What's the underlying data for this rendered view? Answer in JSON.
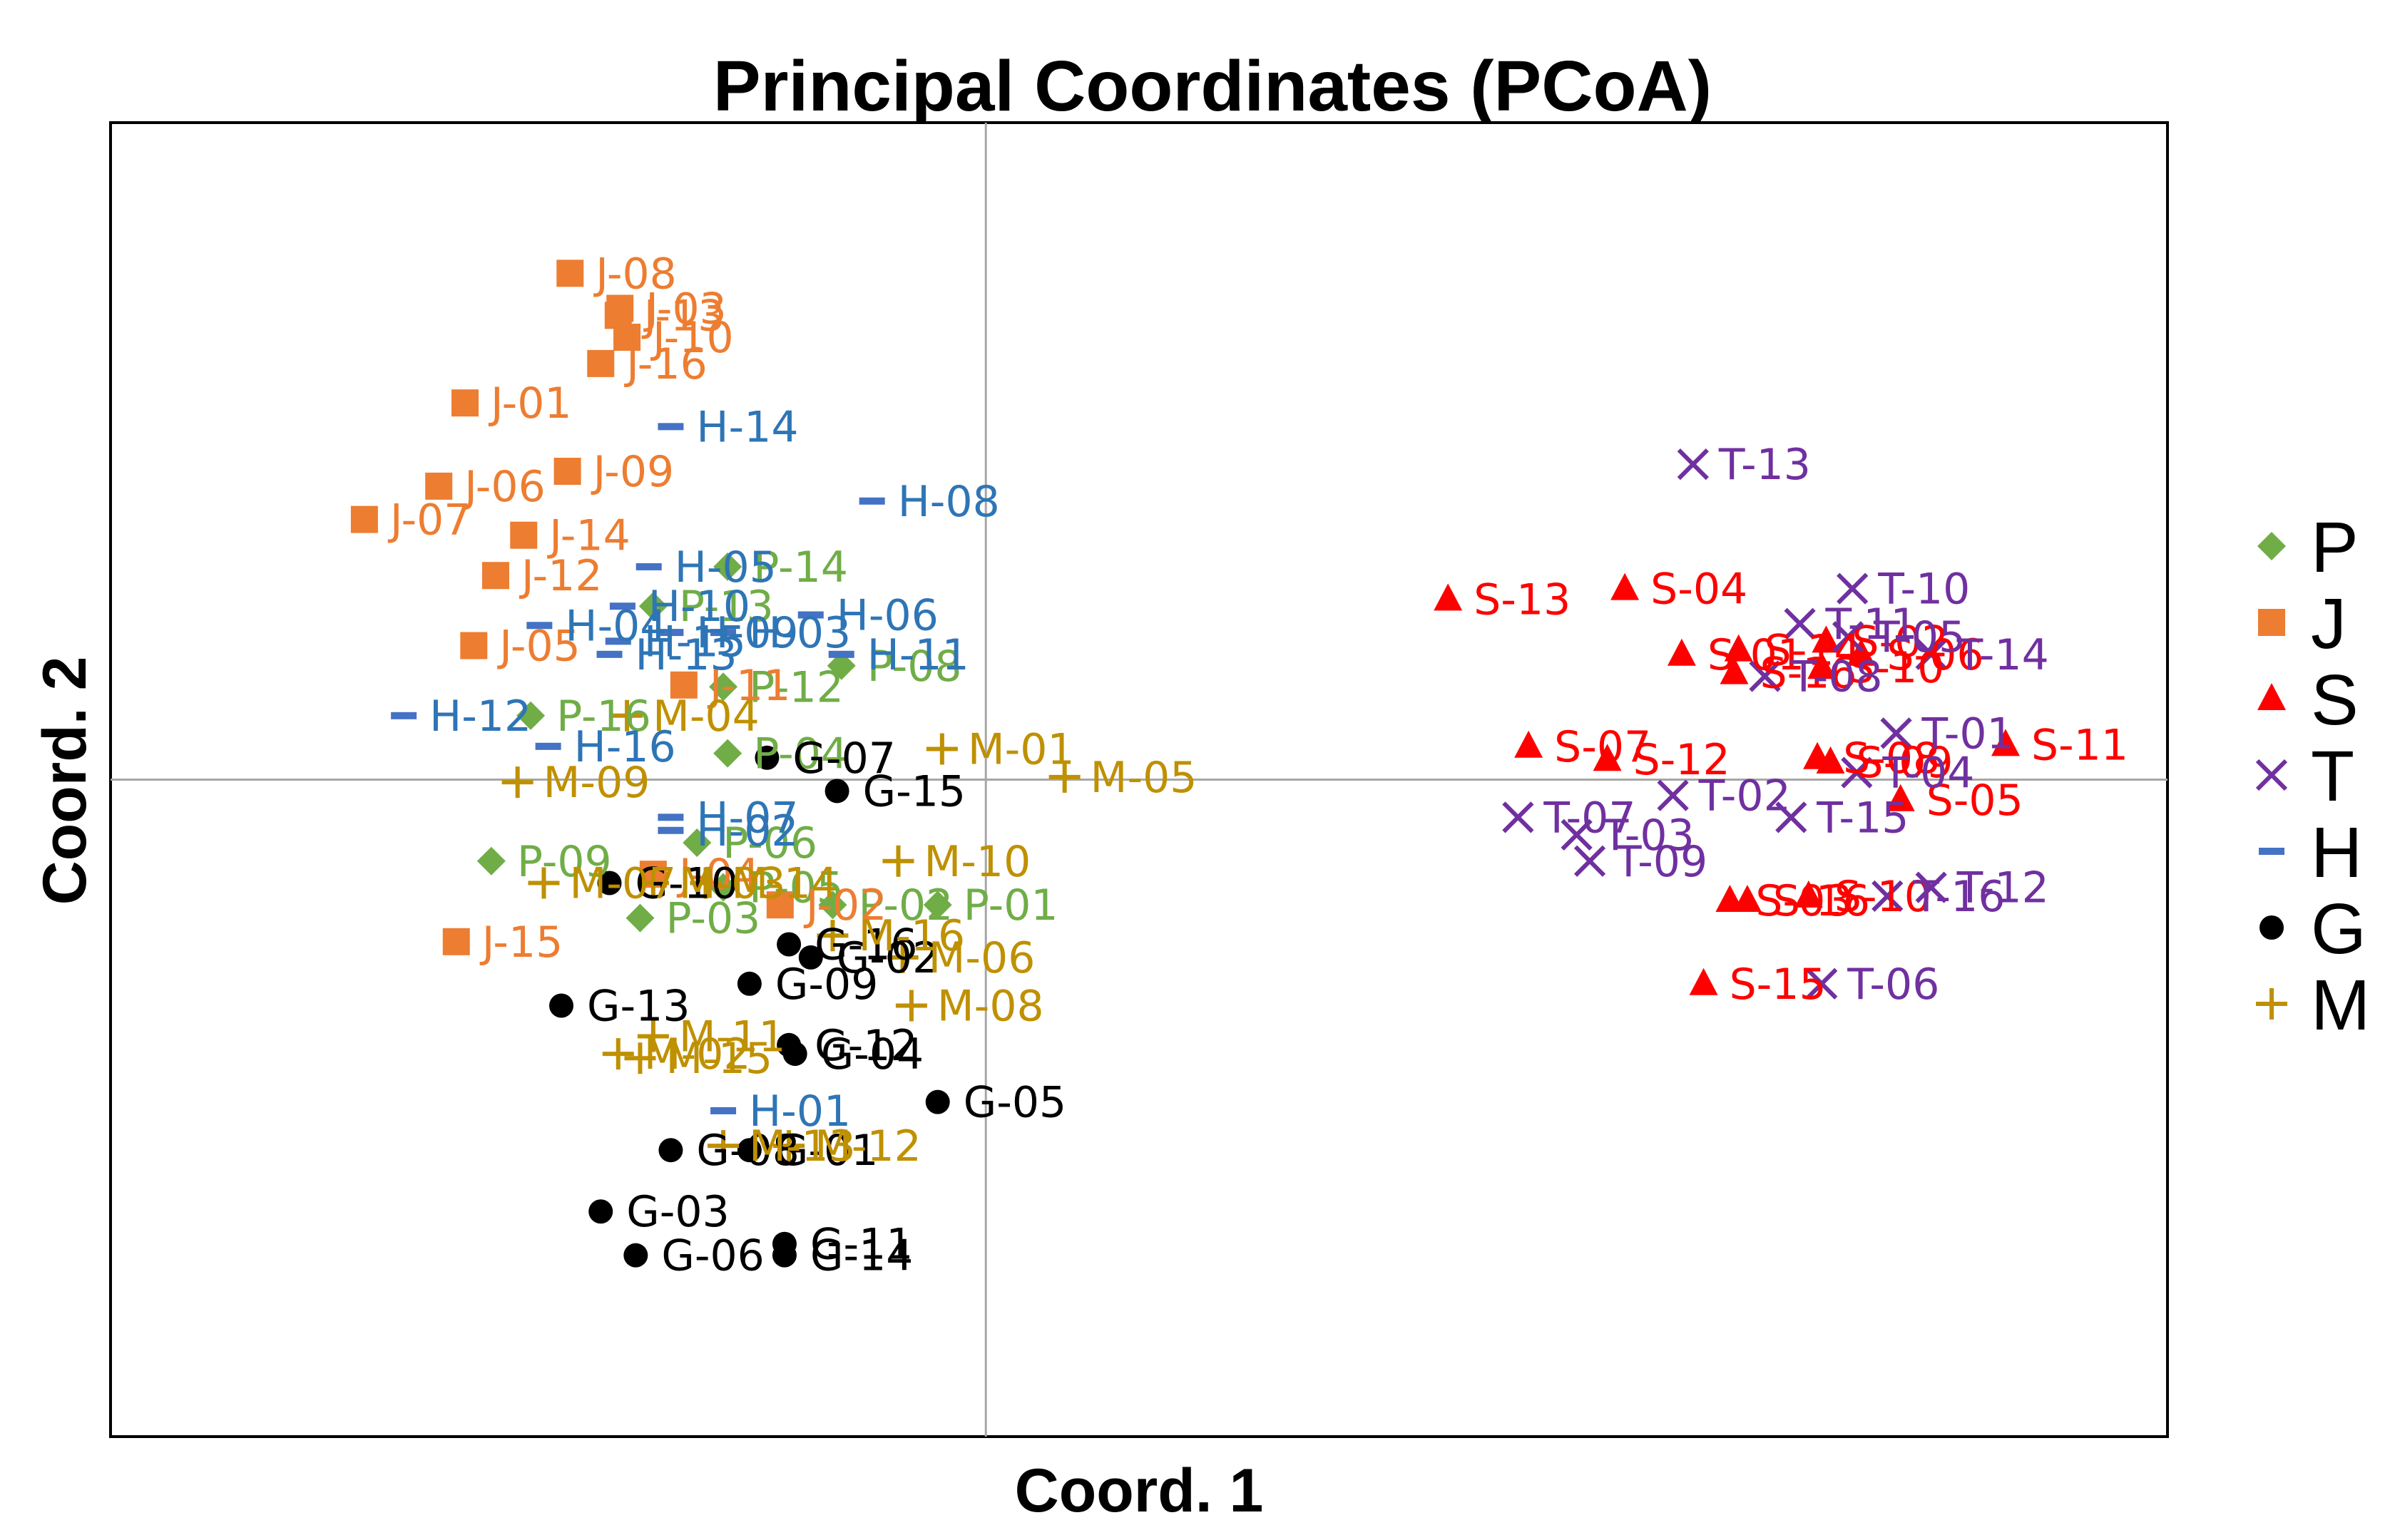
{
  "chart_data": {
    "type": "scatter",
    "title": "Principal Coordinates (PCoA)",
    "xlabel": "Coord. 1",
    "ylabel": "Coord. 2",
    "xlim": [
      -1.0,
      1.35
    ],
    "ylim": [
      -0.75,
      0.75
    ],
    "grid": false,
    "zero_lines": true,
    "legend_position": "right",
    "series": [
      {
        "name": "P",
        "marker": "diamond",
        "color": "#70AD47",
        "label_color": "#70AD47",
        "points": [
          {
            "label": "P-14",
            "x": -0.295,
            "y": 0.243
          },
          {
            "label": "P-13",
            "x": -0.38,
            "y": 0.198
          },
          {
            "label": "P-12",
            "x": -0.3,
            "y": 0.106
          },
          {
            "label": "P-08",
            "x": -0.165,
            "y": 0.13
          },
          {
            "label": "P-16",
            "x": -0.52,
            "y": 0.073
          },
          {
            "label": "P-04",
            "x": -0.295,
            "y": 0.03
          },
          {
            "label": "P-06",
            "x": -0.33,
            "y": -0.072
          },
          {
            "label": "P-09",
            "x": -0.565,
            "y": -0.093
          },
          {
            "label": "P-05",
            "x": -0.3,
            "y": -0.123
          },
          {
            "label": "P-02",
            "x": -0.175,
            "y": -0.143
          },
          {
            "label": "P-01",
            "x": -0.055,
            "y": -0.143
          },
          {
            "label": "P-03",
            "x": -0.395,
            "y": -0.158
          }
        ]
      },
      {
        "name": "J",
        "marker": "square",
        "color": "#ED7D31",
        "label_color": "#ED7D31",
        "points": [
          {
            "label": "J-08",
            "x": -0.475,
            "y": 0.578
          },
          {
            "label": "J-03",
            "x": -0.418,
            "y": 0.538
          },
          {
            "label": "J-13",
            "x": -0.42,
            "y": 0.53
          },
          {
            "label": "J-10",
            "x": -0.41,
            "y": 0.505
          },
          {
            "label": "J-16",
            "x": -0.44,
            "y": 0.475
          },
          {
            "label": "J-01",
            "x": -0.595,
            "y": 0.43
          },
          {
            "label": "J-09",
            "x": -0.478,
            "y": 0.352
          },
          {
            "label": "J-06",
            "x": -0.625,
            "y": 0.335
          },
          {
            "label": "J-07",
            "x": -0.71,
            "y": 0.297
          },
          {
            "label": "J-14",
            "x": -0.528,
            "y": 0.279
          },
          {
            "label": "J-12",
            "x": -0.56,
            "y": 0.233
          },
          {
            "label": "J-05",
            "x": -0.585,
            "y": 0.153
          },
          {
            "label": "J-11",
            "x": -0.345,
            "y": 0.108
          },
          {
            "label": "J-02",
            "x": -0.235,
            "y": -0.143
          },
          {
            "label": "J-04",
            "x": -0.38,
            "y": -0.108
          },
          {
            "label": "J-15",
            "x": -0.605,
            "y": -0.185
          }
        ]
      },
      {
        "name": "S",
        "marker": "triangle",
        "color": "#FF0000",
        "label_color": "#FF0000",
        "points": [
          {
            "label": "S-13",
            "x": 0.528,
            "y": 0.206
          },
          {
            "label": "S-04",
            "x": 0.73,
            "y": 0.218
          },
          {
            "label": "S-01",
            "x": 0.795,
            "y": 0.143
          },
          {
            "label": "S-14",
            "x": 0.86,
            "y": 0.148
          },
          {
            "label": "S-16",
            "x": 0.855,
            "y": 0.122
          },
          {
            "label": "S-10",
            "x": 0.955,
            "y": 0.128
          },
          {
            "label": "S-06",
            "x": 1.0,
            "y": 0.143
          },
          {
            "label": "S-02",
            "x": 0.96,
            "y": 0.158
          },
          {
            "label": "S-07",
            "x": 0.62,
            "y": 0.038
          },
          {
            "label": "S-12",
            "x": 0.71,
            "y": 0.023
          },
          {
            "label": "S-08",
            "x": 0.95,
            "y": 0.025
          },
          {
            "label": "S-09",
            "x": 0.965,
            "y": 0.02
          },
          {
            "label": "S-11",
            "x": 1.165,
            "y": 0.04
          },
          {
            "label": "S-05",
            "x": 1.045,
            "y": -0.023
          },
          {
            "label": "S-03",
            "x": 0.85,
            "y": -0.138
          },
          {
            "label": "S-16",
            "x": 0.87,
            "y": -0.138
          },
          {
            "label": "S-15",
            "x": 0.82,
            "y": -0.233
          },
          {
            "label": "S-10",
            "x": 0.94,
            "y": -0.133
          }
        ]
      },
      {
        "name": "T",
        "marker": "x",
        "color": "#7030A0",
        "label_color": "#7030A0",
        "points": [
          {
            "label": "T-13",
            "x": 0.808,
            "y": 0.36
          },
          {
            "label": "T-10",
            "x": 0.99,
            "y": 0.218
          },
          {
            "label": "T-11",
            "x": 0.93,
            "y": 0.178
          },
          {
            "label": "T-05",
            "x": 0.985,
            "y": 0.163
          },
          {
            "label": "T-14",
            "x": 1.08,
            "y": 0.143
          },
          {
            "label": "T-08",
            "x": 0.89,
            "y": 0.118
          },
          {
            "label": "T-01",
            "x": 1.04,
            "y": 0.053
          },
          {
            "label": "T-04",
            "x": 0.995,
            "y": 0.008
          },
          {
            "label": "T-02",
            "x": 0.785,
            "y": -0.018
          },
          {
            "label": "T-15",
            "x": 0.92,
            "y": -0.043
          },
          {
            "label": "T-07",
            "x": 0.608,
            "y": -0.043
          },
          {
            "label": "T-03",
            "x": 0.675,
            "y": -0.063
          },
          {
            "label": "T-09",
            "x": 0.69,
            "y": -0.093
          },
          {
            "label": "T-12",
            "x": 1.08,
            "y": -0.123
          },
          {
            "label": "T-16",
            "x": 1.03,
            "y": -0.133
          },
          {
            "label": "T-06",
            "x": 0.955,
            "y": -0.233
          }
        ]
      },
      {
        "name": "H",
        "marker": "dash",
        "color": "#4472C4",
        "label_color": "#2E75B6",
        "points": [
          {
            "label": "H-14",
            "x": -0.36,
            "y": 0.403
          },
          {
            "label": "H-08",
            "x": -0.13,
            "y": 0.318
          },
          {
            "label": "H-05",
            "x": -0.385,
            "y": 0.243
          },
          {
            "label": "H-06",
            "x": -0.2,
            "y": 0.188
          },
          {
            "label": "H-10",
            "x": -0.415,
            "y": 0.198
          },
          {
            "label": "H-04",
            "x": -0.51,
            "y": 0.176
          },
          {
            "label": "H-09",
            "x": -0.36,
            "y": 0.168
          },
          {
            "label": "H-03",
            "x": -0.3,
            "y": 0.168
          },
          {
            "label": "H-15",
            "x": -0.42,
            "y": 0.158
          },
          {
            "label": "H-13",
            "x": -0.43,
            "y": 0.143
          },
          {
            "label": "H-11",
            "x": -0.165,
            "y": 0.143
          },
          {
            "label": "H-12",
            "x": -0.665,
            "y": 0.073
          },
          {
            "label": "H-16",
            "x": -0.5,
            "y": 0.038
          },
          {
            "label": "H-07",
            "x": -0.36,
            "y": -0.043
          },
          {
            "label": "H-02",
            "x": -0.36,
            "y": -0.058
          },
          {
            "label": "H-01",
            "x": -0.3,
            "y": -0.378
          }
        ]
      },
      {
        "name": "G",
        "marker": "circle",
        "color": "#000000",
        "label_color": "#000000",
        "points": [
          {
            "label": "G-07",
            "x": -0.25,
            "y": 0.025
          },
          {
            "label": "G-15",
            "x": -0.17,
            "y": -0.013
          },
          {
            "label": "G-10",
            "x": -0.43,
            "y": -0.118
          },
          {
            "label": "G-16",
            "x": -0.225,
            "y": -0.188
          },
          {
            "label": "G-02",
            "x": -0.2,
            "y": -0.203
          },
          {
            "label": "G-09",
            "x": -0.27,
            "y": -0.233
          },
          {
            "label": "G-13",
            "x": -0.485,
            "y": -0.258
          },
          {
            "label": "G-12",
            "x": -0.225,
            "y": -0.303
          },
          {
            "label": "G-04",
            "x": -0.218,
            "y": -0.313
          },
          {
            "label": "G-05",
            "x": -0.055,
            "y": -0.368
          },
          {
            "label": "G-08",
            "x": -0.36,
            "y": -0.423
          },
          {
            "label": "G-01",
            "x": -0.27,
            "y": -0.423
          },
          {
            "label": "G-03",
            "x": -0.44,
            "y": -0.493
          },
          {
            "label": "G-11",
            "x": -0.23,
            "y": -0.53
          },
          {
            "label": "G-06",
            "x": -0.4,
            "y": -0.543
          },
          {
            "label": "G-14",
            "x": -0.23,
            "y": -0.543
          }
        ]
      },
      {
        "name": "M",
        "marker": "plus",
        "color": "#BF9000",
        "label_color": "#BF9000",
        "points": [
          {
            "label": "M-04",
            "x": -0.41,
            "y": 0.073
          },
          {
            "label": "M-01",
            "x": -0.05,
            "y": 0.035
          },
          {
            "label": "M-05",
            "x": 0.09,
            "y": 0.003
          },
          {
            "label": "M-09",
            "x": -0.535,
            "y": -0.003
          },
          {
            "label": "M-10",
            "x": -0.1,
            "y": -0.093
          },
          {
            "label": "M-07",
            "x": -0.505,
            "y": -0.118
          },
          {
            "label": "M-03",
            "x": -0.38,
            "y": -0.118
          },
          {
            "label": "M-14",
            "x": -0.32,
            "y": -0.118
          },
          {
            "label": "M-16",
            "x": -0.175,
            "y": -0.178
          },
          {
            "label": "M-06",
            "x": -0.095,
            "y": -0.203
          },
          {
            "label": "M-08",
            "x": -0.085,
            "y": -0.258
          },
          {
            "label": "M-11",
            "x": -0.38,
            "y": -0.293
          },
          {
            "label": "M-02",
            "x": -0.42,
            "y": -0.313
          },
          {
            "label": "M-15",
            "x": -0.395,
            "y": -0.318
          },
          {
            "label": "M-13",
            "x": -0.3,
            "y": -0.418
          },
          {
            "label": "M-12",
            "x": -0.225,
            "y": -0.418
          }
        ]
      }
    ]
  }
}
